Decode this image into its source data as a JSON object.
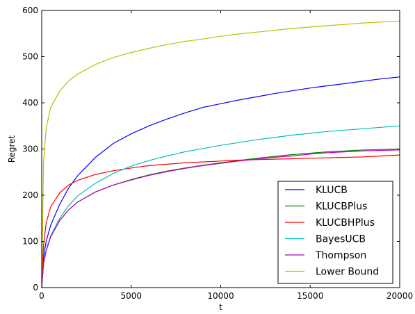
{
  "chart_data": {
    "type": "line",
    "title": "",
    "xlabel": "t",
    "ylabel": "Regret",
    "xlim": [
      0,
      20000
    ],
    "ylim": [
      0,
      600
    ],
    "x_ticks": [
      0,
      5000,
      10000,
      15000,
      20000
    ],
    "x_tick_labels": [
      "0",
      "5000",
      "10000",
      "15000",
      "20000"
    ],
    "y_ticks": [
      0,
      100,
      200,
      300,
      400,
      500,
      600
    ],
    "y_tick_labels": [
      "0",
      "100",
      "200",
      "300",
      "400",
      "500",
      "600"
    ],
    "grid": false,
    "legend_position": "lower-right",
    "x": [
      0,
      100,
      250,
      500,
      1000,
      1500,
      2000,
      3000,
      4000,
      5000,
      6000,
      7000,
      8000,
      9000,
      10000,
      11000,
      12000,
      13000,
      14000,
      15000,
      16000,
      17000,
      18000,
      19000,
      20000
    ],
    "series": [
      {
        "name": "KLUCB",
        "color": "#0000ff",
        "values": [
          0,
          65,
          100,
          135,
          180,
          215,
          242,
          282,
          312,
          333,
          350,
          365,
          378,
          390,
          398,
          406,
          413,
          420,
          426,
          432,
          437,
          442,
          447,
          452,
          456
        ]
      },
      {
        "name": "KLUCBPlus",
        "color": "#008000",
        "values": [
          0,
          50,
          80,
          110,
          145,
          168,
          185,
          207,
          222,
          234,
          244,
          252,
          259,
          265,
          270,
          275,
          280,
          284,
          288,
          291,
          294,
          296,
          298,
          299,
          300
        ]
      },
      {
        "name": "KLUCBHPlus",
        "color": "#ff0000",
        "values": [
          0,
          90,
          140,
          175,
          205,
          222,
          232,
          245,
          253,
          259,
          264,
          267,
          270,
          272,
          274,
          276,
          277,
          278,
          279,
          280,
          281,
          282,
          283,
          285,
          287
        ]
      },
      {
        "name": "BayesUCB",
        "color": "#00bfbf",
        "values": [
          0,
          52,
          82,
          112,
          150,
          177,
          198,
          226,
          247,
          263,
          275,
          285,
          294,
          301,
          308,
          314,
          320,
          325,
          330,
          334,
          338,
          341,
          344,
          347,
          350
        ]
      },
      {
        "name": "Thompson",
        "color": "#bf00bf",
        "values": [
          0,
          50,
          80,
          110,
          145,
          168,
          185,
          207,
          222,
          233,
          243,
          251,
          258,
          264,
          269,
          274,
          278,
          282,
          285,
          289,
          292,
          294,
          296,
          297,
          298
        ]
      },
      {
        "name": "Lower Bound",
        "color": "#bfbf00",
        "values": [
          0,
          270,
          345,
          390,
          425,
          447,
          462,
          483,
          498,
          509,
          518,
          526,
          533,
          538,
          544,
          549,
          553,
          557,
          561,
          564,
          567,
          570,
          573,
          575,
          577
        ]
      }
    ]
  }
}
